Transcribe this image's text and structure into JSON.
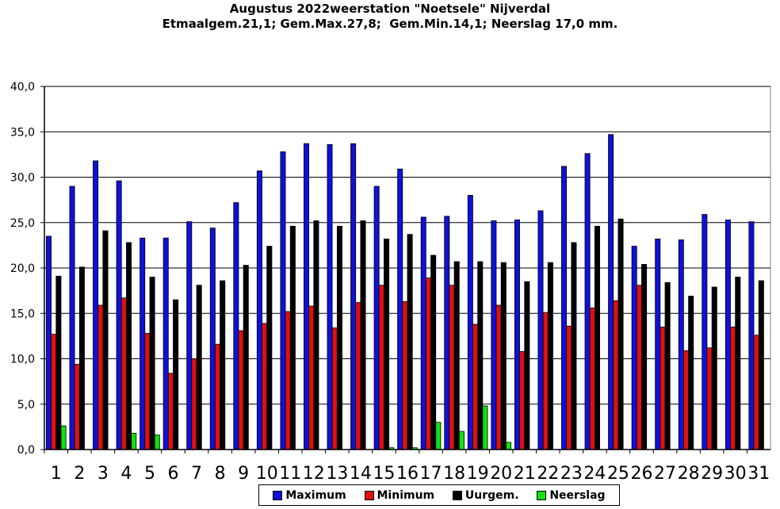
{
  "chart_data": {
    "type": "bar",
    "title": "Augustus 2022weerstation \"Noetsele\" Nijverdal",
    "subtitle": "Etmaalgem.21,1; Gem.Max.27,8;  Gem.Min.14,1; Neerslag 17,0 mm.",
    "ylim": [
      0,
      40
    ],
    "yticks": [
      "0,0",
      "5,0",
      "10,0",
      "15,0",
      "20,0",
      "25,0",
      "30,0",
      "35,0",
      "40,0"
    ],
    "grid": true,
    "legend_position": "bottom",
    "categories": [
      "1",
      "2",
      "3",
      "4",
      "5",
      "6",
      "7",
      "8",
      "9",
      "10",
      "11",
      "12",
      "13",
      "14",
      "15",
      "16",
      "17",
      "18",
      "19",
      "20",
      "21",
      "22",
      "23",
      "24",
      "25",
      "26",
      "27",
      "28",
      "29",
      "30",
      "31"
    ],
    "series": [
      {
        "name": "Maximum",
        "color": "#1010d8",
        "values": [
          23.5,
          29.0,
          31.8,
          29.6,
          23.3,
          23.3,
          25.1,
          24.4,
          27.2,
          30.7,
          32.8,
          33.7,
          33.6,
          33.7,
          29.0,
          30.9,
          25.6,
          25.7,
          28.0,
          25.2,
          25.3,
          26.3,
          31.2,
          32.6,
          34.7,
          22.4,
          23.2,
          23.1,
          25.9,
          25.3,
          25.1
        ]
      },
      {
        "name": "Minimum",
        "color": "#e01010",
        "values": [
          12.7,
          9.4,
          15.9,
          16.7,
          12.8,
          8.4,
          10.0,
          11.6,
          13.1,
          13.9,
          15.2,
          15.8,
          13.4,
          16.2,
          18.1,
          16.3,
          18.9,
          18.1,
          13.8,
          15.9,
          10.8,
          15.1,
          13.6,
          15.6,
          16.4,
          18.1,
          13.5,
          10.9,
          11.2,
          13.5,
          12.6
        ]
      },
      {
        "name": "Uurgem.",
        "color": "#000000",
        "values": [
          19.1,
          20.1,
          24.1,
          22.8,
          19.0,
          16.5,
          18.1,
          18.6,
          20.3,
          22.4,
          24.6,
          25.2,
          24.6,
          25.2,
          23.2,
          23.7,
          21.4,
          20.7,
          20.7,
          20.6,
          18.5,
          20.6,
          22.8,
          24.6,
          25.4,
          20.4,
          18.4,
          16.9,
          17.9,
          19.0,
          18.6
        ]
      },
      {
        "name": "Neerslag",
        "color": "#10e010",
        "values": [
          2.6,
          0.0,
          0.0,
          1.8,
          1.6,
          0.0,
          0.0,
          0.0,
          0.0,
          0.0,
          0.0,
          0.0,
          0.0,
          0.0,
          0.2,
          0.2,
          3.0,
          2.0,
          4.8,
          0.8,
          0.0,
          0.0,
          0.0,
          0.0,
          0.0,
          0.0,
          0.0,
          0.0,
          0.0,
          0.0,
          0.0
        ]
      }
    ]
  }
}
